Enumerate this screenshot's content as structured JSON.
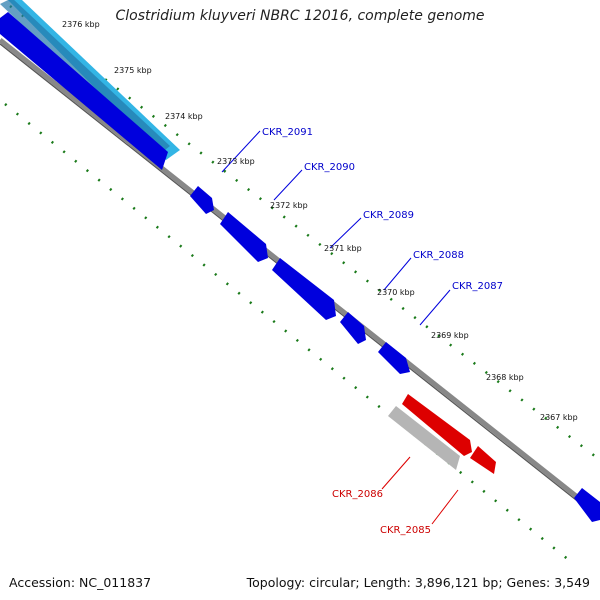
{
  "title": "Clostridium kluyveri NBRC 12016, complete genome",
  "footer": {
    "accession": "Accession: NC_011837",
    "summary": "Topology: circular; Length: 3,896,121 bp; Genes: 3,549"
  },
  "scale_labels": [
    "2376 kbp",
    "2375 kbp",
    "2374 kbp",
    "2373 kbp",
    "2372 kbp",
    "2371 kbp",
    "2370 kbp",
    "2369 kbp",
    "2368 kbp",
    "2367 kbp"
  ],
  "genes": [
    {
      "name": "CKR_2091",
      "strand": "forward",
      "color": "#0000dd"
    },
    {
      "name": "CKR_2090",
      "strand": "forward",
      "color": "#0000dd"
    },
    {
      "name": "CKR_2089",
      "strand": "forward",
      "color": "#0000dd"
    },
    {
      "name": "CKR_2088",
      "strand": "forward",
      "color": "#0000dd"
    },
    {
      "name": "CKR_2087",
      "strand": "forward",
      "color": "#0000dd"
    },
    {
      "name": "CKR_2086",
      "strand": "reverse",
      "color": "#aaaaaa"
    },
    {
      "name": "CKR_2085",
      "strand": "reverse",
      "color": "#dd0000"
    }
  ],
  "colors": {
    "forward_gene": "#0000dd",
    "reverse_gene": "#dd0000",
    "pseudo_gene": "#b5b5b5",
    "highlight_band": "#33b5e5",
    "backbone": "#888888",
    "tick": "#1a7a1a"
  }
}
